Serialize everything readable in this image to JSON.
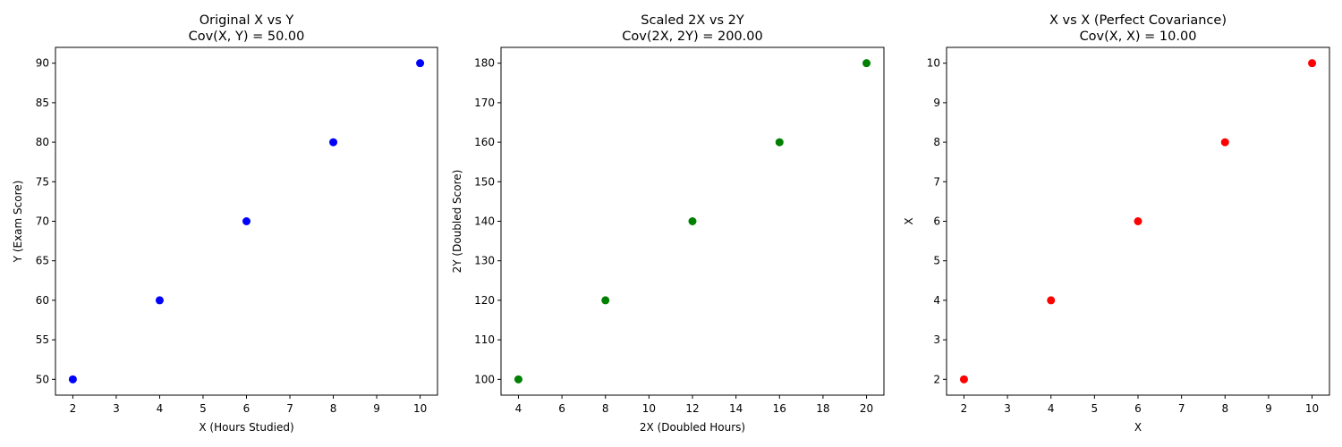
{
  "chart_data": [
    {
      "type": "scatter",
      "title": [
        "Original X vs Y",
        "Cov(X, Y) = 50.00"
      ],
      "xlabel": "X (Hours Studied)",
      "ylabel": "Y (Exam Score)",
      "x": [
        2,
        4,
        6,
        8,
        10
      ],
      "y": [
        50,
        60,
        70,
        80,
        90
      ],
      "color": "#0000ff",
      "xlim": [
        1.6,
        10.4
      ],
      "ylim": [
        48,
        92
      ],
      "xticks": [
        2,
        3,
        4,
        5,
        6,
        7,
        8,
        9,
        10
      ],
      "yticks": [
        50,
        55,
        60,
        65,
        70,
        75,
        80,
        85,
        90
      ],
      "grid": false
    },
    {
      "type": "scatter",
      "title": [
        "Scaled 2X vs 2Y",
        "Cov(2X, 2Y) = 200.00"
      ],
      "xlabel": "2X (Doubled Hours)",
      "ylabel": "2Y (Doubled Score)",
      "x": [
        4,
        8,
        12,
        16,
        20
      ],
      "y": [
        100,
        120,
        140,
        160,
        180
      ],
      "color": "#008000",
      "xlim": [
        3.2,
        20.8
      ],
      "ylim": [
        96,
        184
      ],
      "xticks": [
        4,
        6,
        8,
        10,
        12,
        14,
        16,
        18,
        20
      ],
      "yticks": [
        100,
        110,
        120,
        130,
        140,
        150,
        160,
        170,
        180
      ],
      "grid": false
    },
    {
      "type": "scatter",
      "title": [
        "X vs X (Perfect Covariance)",
        "Cov(X, X) = 10.00"
      ],
      "xlabel": "X",
      "ylabel": "X",
      "x": [
        2,
        4,
        6,
        8,
        10
      ],
      "y": [
        2,
        4,
        6,
        8,
        10
      ],
      "color": "#ff0000",
      "xlim": [
        1.6,
        10.4
      ],
      "ylim": [
        1.6,
        10.4
      ],
      "xticks": [
        2,
        3,
        4,
        5,
        6,
        7,
        8,
        9,
        10
      ],
      "yticks": [
        2,
        3,
        4,
        5,
        6,
        7,
        8,
        9,
        10
      ],
      "grid": false
    }
  ]
}
